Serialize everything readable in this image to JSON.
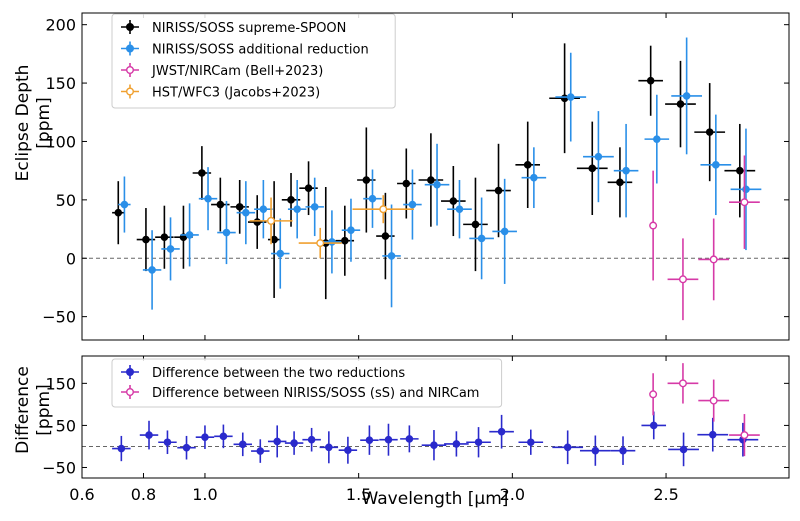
{
  "chart_data": [
    {
      "type": "scatter",
      "title": "",
      "ylabel_line1": "Eclipse Depth",
      "ylabel_line2": "[ppm]",
      "xlim": [
        0.6,
        2.9
      ],
      "ylim": [
        -70,
        210
      ],
      "yticks": [
        -50,
        0,
        50,
        100,
        150,
        200
      ],
      "reference_line": 0,
      "legend_position": "top-left",
      "series": [
        {
          "name": "NIRISS/SOSS supreme-SPOON",
          "color": "#000000",
          "marker": "filled",
          "points": [
            {
              "x": 0.718,
              "y": 39,
              "xerr": 0.02,
              "yerr": 27
            },
            {
              "x": 0.808,
              "y": 16,
              "xerr": 0.03,
              "yerr": 27
            },
            {
              "x": 0.868,
              "y": 18,
              "xerr": 0.03,
              "yerr": 27
            },
            {
              "x": 0.93,
              "y": 18,
              "xerr": 0.03,
              "yerr": 27
            },
            {
              "x": 0.99,
              "y": 73,
              "xerr": 0.03,
              "yerr": 23
            },
            {
              "x": 1.05,
              "y": 46,
              "xerr": 0.03,
              "yerr": 23
            },
            {
              "x": 1.113,
              "y": 44,
              "xerr": 0.03,
              "yerr": 23
            },
            {
              "x": 1.17,
              "y": 31,
              "xerr": 0.03,
              "yerr": 23
            },
            {
              "x": 1.225,
              "y": 16,
              "xerr": 0.02,
              "yerr": 50
            },
            {
              "x": 1.28,
              "y": 50,
              "xerr": 0.03,
              "yerr": 23
            },
            {
              "x": 1.337,
              "y": 60,
              "xerr": 0.03,
              "yerr": 23
            },
            {
              "x": 1.393,
              "y": 13,
              "xerr": 0.03,
              "yerr": 48
            },
            {
              "x": 1.455,
              "y": 15,
              "xerr": 0.03,
              "yerr": 30
            },
            {
              "x": 1.525,
              "y": 67,
              "xerr": 0.03,
              "yerr": 45
            },
            {
              "x": 1.587,
              "y": 19,
              "xerr": 0.03,
              "yerr": 37
            },
            {
              "x": 1.655,
              "y": 64,
              "xerr": 0.03,
              "yerr": 30
            },
            {
              "x": 1.735,
              "y": 67,
              "xerr": 0.04,
              "yerr": 40
            },
            {
              "x": 1.808,
              "y": 49,
              "xerr": 0.04,
              "yerr": 30
            },
            {
              "x": 1.88,
              "y": 29,
              "xerr": 0.04,
              "yerr": 40
            },
            {
              "x": 1.955,
              "y": 58,
              "xerr": 0.04,
              "yerr": 40
            },
            {
              "x": 2.05,
              "y": 80,
              "xerr": 0.04,
              "yerr": 37
            },
            {
              "x": 2.17,
              "y": 137,
              "xerr": 0.05,
              "yerr": 47
            },
            {
              "x": 2.26,
              "y": 77,
              "xerr": 0.05,
              "yerr": 40
            },
            {
              "x": 2.35,
              "y": 65,
              "xerr": 0.04,
              "yerr": 30
            },
            {
              "x": 2.45,
              "y": 152,
              "xerr": 0.04,
              "yerr": 30
            },
            {
              "x": 2.547,
              "y": 132,
              "xerr": 0.05,
              "yerr": 37
            },
            {
              "x": 2.642,
              "y": 108,
              "xerr": 0.05,
              "yerr": 42
            },
            {
              "x": 2.74,
              "y": 75,
              "xerr": 0.05,
              "yerr": 40
            }
          ]
        },
        {
          "name": "NIRISS/SOSS additional reduction",
          "color": "#2a8fe8",
          "marker": "filled",
          "points": [
            {
              "x": 0.738,
              "y": 46,
              "xerr": 0.02,
              "yerr": 24
            },
            {
              "x": 0.828,
              "y": -10,
              "xerr": 0.03,
              "yerr": 34
            },
            {
              "x": 0.888,
              "y": 8,
              "xerr": 0.03,
              "yerr": 27
            },
            {
              "x": 0.95,
              "y": 20,
              "xerr": 0.03,
              "yerr": 27
            },
            {
              "x": 1.01,
              "y": 51,
              "xerr": 0.03,
              "yerr": 27
            },
            {
              "x": 1.07,
              "y": 22,
              "xerr": 0.03,
              "yerr": 27
            },
            {
              "x": 1.133,
              "y": 39,
              "xerr": 0.03,
              "yerr": 27
            },
            {
              "x": 1.19,
              "y": 42,
              "xerr": 0.03,
              "yerr": 25
            },
            {
              "x": 1.245,
              "y": 4,
              "xerr": 0.03,
              "yerr": 30
            },
            {
              "x": 1.3,
              "y": 42,
              "xerr": 0.03,
              "yerr": 25
            },
            {
              "x": 1.357,
              "y": 44,
              "xerr": 0.03,
              "yerr": 25
            },
            {
              "x": 1.413,
              "y": 14,
              "xerr": 0.03,
              "yerr": 27
            },
            {
              "x": 1.475,
              "y": 24,
              "xerr": 0.03,
              "yerr": 27
            },
            {
              "x": 1.545,
              "y": 51,
              "xerr": 0.03,
              "yerr": 25
            },
            {
              "x": 1.607,
              "y": 2,
              "xerr": 0.03,
              "yerr": 44
            },
            {
              "x": 1.675,
              "y": 46,
              "xerr": 0.03,
              "yerr": 30
            },
            {
              "x": 1.755,
              "y": 63,
              "xerr": 0.04,
              "yerr": 35
            },
            {
              "x": 1.828,
              "y": 42,
              "xerr": 0.04,
              "yerr": 25
            },
            {
              "x": 1.9,
              "y": 17,
              "xerr": 0.04,
              "yerr": 35
            },
            {
              "x": 1.975,
              "y": 23,
              "xerr": 0.04,
              "yerr": 45
            },
            {
              "x": 2.07,
              "y": 69,
              "xerr": 0.04,
              "yerr": 26
            },
            {
              "x": 2.19,
              "y": 138,
              "xerr": 0.05,
              "yerr": 38
            },
            {
              "x": 2.28,
              "y": 87,
              "xerr": 0.05,
              "yerr": 39
            },
            {
              "x": 2.37,
              "y": 75,
              "xerr": 0.04,
              "yerr": 40
            },
            {
              "x": 2.47,
              "y": 102,
              "xerr": 0.04,
              "yerr": 38
            },
            {
              "x": 2.567,
              "y": 139,
              "xerr": 0.05,
              "yerr": 50
            },
            {
              "x": 2.662,
              "y": 80,
              "xerr": 0.05,
              "yerr": 43
            },
            {
              "x": 2.76,
              "y": 59,
              "xerr": 0.05,
              "yerr": 52
            }
          ]
        },
        {
          "name": "JWST/NIRCam (Bell+2023)",
          "color": "#d63aa7",
          "marker": "open",
          "points": [
            {
              "x": 2.458,
              "y": 28,
              "xerr": 0.0,
              "yerr": 47
            },
            {
              "x": 2.555,
              "y": -18,
              "xerr": 0.05,
              "yerr": 35
            },
            {
              "x": 2.655,
              "y": -1,
              "xerr": 0.05,
              "yerr": 35
            },
            {
              "x": 2.755,
              "y": 48,
              "xerr": 0.05,
              "yerr": 40
            }
          ]
        },
        {
          "name": "HST/WFC3 (Jacobs+2023)",
          "color": "#f0a030",
          "marker": "open",
          "points": [
            {
              "x": 1.215,
              "y": 32,
              "xerr": 0.07,
              "yerr": 20
            },
            {
              "x": 1.375,
              "y": 13,
              "xerr": 0.07,
              "yerr": 13
            },
            {
              "x": 1.58,
              "y": 42,
              "xerr": 0.1,
              "yerr": 12
            }
          ]
        }
      ]
    },
    {
      "type": "scatter",
      "title": "",
      "xlabel": "Wavelength [μm]",
      "ylabel_line1": "Difference",
      "ylabel_line2": "[ppm]",
      "xlim": [
        0.6,
        2.9
      ],
      "ylim": [
        -75,
        215
      ],
      "yticks": [
        -50,
        50,
        150
      ],
      "xticks": [
        0.6,
        0.8,
        1.0,
        1.5,
        2.0,
        2.5
      ],
      "xtick_labels": [
        "0.6",
        "0.8",
        "1.0",
        "1.5",
        "2.0",
        "2.5"
      ],
      "reference_line": 0,
      "legend_position": "top-left",
      "series": [
        {
          "name": "Difference between the two reductions",
          "color": "#2a2acc",
          "marker": "filled",
          "points": [
            {
              "x": 0.728,
              "y": -5,
              "xerr": 0.03,
              "yerr": 30
            },
            {
              "x": 0.818,
              "y": 27,
              "xerr": 0.03,
              "yerr": 34
            },
            {
              "x": 0.878,
              "y": 10,
              "xerr": 0.03,
              "yerr": 28
            },
            {
              "x": 0.94,
              "y": -3,
              "xerr": 0.03,
              "yerr": 28
            },
            {
              "x": 1.0,
              "y": 22,
              "xerr": 0.03,
              "yerr": 28
            },
            {
              "x": 1.06,
              "y": 24,
              "xerr": 0.03,
              "yerr": 28
            },
            {
              "x": 1.123,
              "y": 5,
              "xerr": 0.03,
              "yerr": 28
            },
            {
              "x": 1.18,
              "y": -11,
              "xerr": 0.03,
              "yerr": 28
            },
            {
              "x": 1.235,
              "y": 12,
              "xerr": 0.03,
              "yerr": 38
            },
            {
              "x": 1.29,
              "y": 8,
              "xerr": 0.03,
              "yerr": 28
            },
            {
              "x": 1.347,
              "y": 16,
              "xerr": 0.03,
              "yerr": 28
            },
            {
              "x": 1.403,
              "y": -2,
              "xerr": 0.03,
              "yerr": 38
            },
            {
              "x": 1.465,
              "y": -9,
              "xerr": 0.03,
              "yerr": 32
            },
            {
              "x": 1.535,
              "y": 15,
              "xerr": 0.03,
              "yerr": 35
            },
            {
              "x": 1.597,
              "y": 16,
              "xerr": 0.03,
              "yerr": 38
            },
            {
              "x": 1.665,
              "y": 18,
              "xerr": 0.03,
              "yerr": 32
            },
            {
              "x": 1.745,
              "y": 3,
              "xerr": 0.04,
              "yerr": 36
            },
            {
              "x": 1.818,
              "y": 6,
              "xerr": 0.04,
              "yerr": 30
            },
            {
              "x": 1.89,
              "y": 10,
              "xerr": 0.04,
              "yerr": 36
            },
            {
              "x": 1.965,
              "y": 35,
              "xerr": 0.04,
              "yerr": 40
            },
            {
              "x": 2.06,
              "y": 10,
              "xerr": 0.04,
              "yerr": 30
            },
            {
              "x": 2.18,
              "y": -2,
              "xerr": 0.05,
              "yerr": 40
            },
            {
              "x": 2.27,
              "y": -10,
              "xerr": 0.05,
              "yerr": 36
            },
            {
              "x": 2.36,
              "y": -10,
              "xerr": 0.04,
              "yerr": 34
            },
            {
              "x": 2.46,
              "y": 50,
              "xerr": 0.04,
              "yerr": 33
            },
            {
              "x": 2.557,
              "y": -7,
              "xerr": 0.05,
              "yerr": 40
            },
            {
              "x": 2.652,
              "y": 28,
              "xerr": 0.05,
              "yerr": 40
            },
            {
              "x": 2.75,
              "y": 16,
              "xerr": 0.05,
              "yerr": 40
            }
          ]
        },
        {
          "name": "Difference between NIRISS/SOSS (sS) and NIRCam",
          "color": "#d63aa7",
          "marker": "open",
          "points": [
            {
              "x": 2.458,
              "y": 124,
              "xerr": 0.0,
              "yerr": 50
            },
            {
              "x": 2.555,
              "y": 150,
              "xerr": 0.05,
              "yerr": 48
            },
            {
              "x": 2.655,
              "y": 109,
              "xerr": 0.05,
              "yerr": 50
            },
            {
              "x": 2.755,
              "y": 27,
              "xerr": 0.05,
              "yerr": 50
            }
          ]
        }
      ]
    }
  ]
}
